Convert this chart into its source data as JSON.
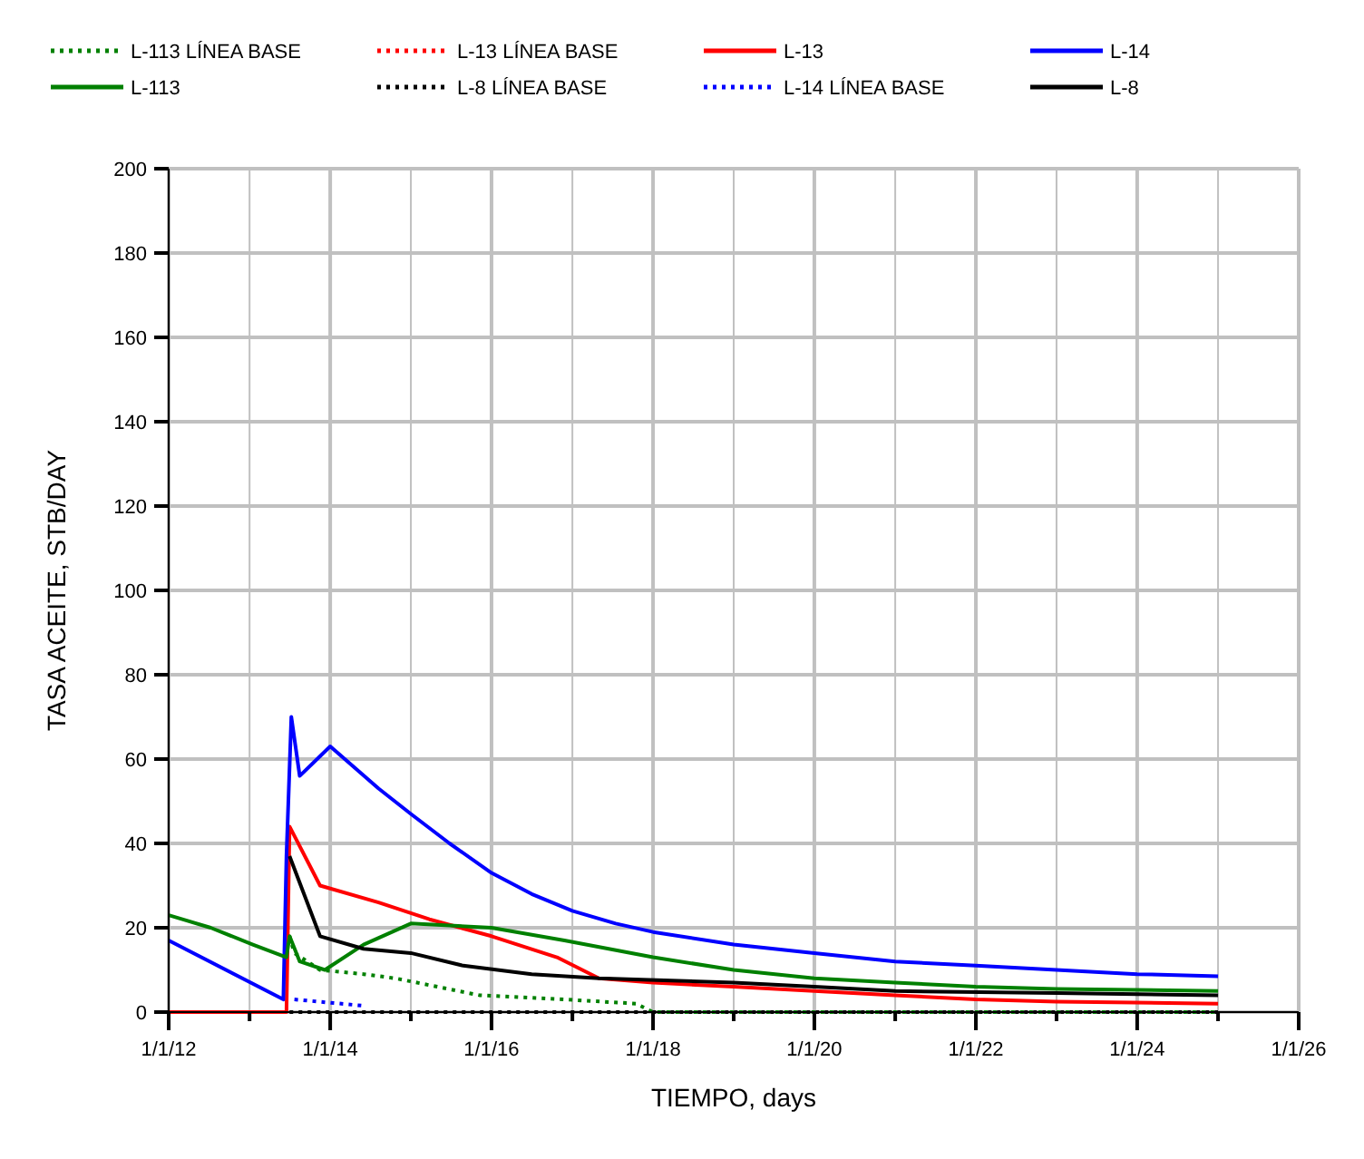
{
  "chart_data": {
    "type": "line",
    "xlabel": "TIEMPO, days",
    "ylabel": "TASA ACEITE, STB/DAY",
    "xlim": [
      "2012-01-01",
      "2026-01-01"
    ],
    "ylim": [
      0,
      200
    ],
    "xticks": [
      {
        "value": "2012-01-01",
        "label": "1/1/12"
      },
      {
        "value": "2013-01-01",
        "label": null
      },
      {
        "value": "2014-01-01",
        "label": "1/1/14"
      },
      {
        "value": "2015-01-01",
        "label": null
      },
      {
        "value": "2016-01-01",
        "label": "1/1/16"
      },
      {
        "value": "2017-01-01",
        "label": null
      },
      {
        "value": "2018-01-01",
        "label": "1/1/18"
      },
      {
        "value": "2019-01-01",
        "label": null
      },
      {
        "value": "2020-01-01",
        "label": "1/1/20"
      },
      {
        "value": "2021-01-01",
        "label": null
      },
      {
        "value": "2022-01-01",
        "label": "1/1/22"
      },
      {
        "value": "2023-01-01",
        "label": null
      },
      {
        "value": "2024-01-01",
        "label": "1/1/24"
      },
      {
        "value": "2025-01-01",
        "label": null
      },
      {
        "value": "2026-01-01",
        "label": "1/1/26"
      }
    ],
    "yticks": [
      0,
      20,
      40,
      60,
      80,
      100,
      120,
      140,
      160,
      180,
      200
    ],
    "grid": true,
    "legend": "top",
    "series": [
      {
        "name": "L-113 LÍNEA BASE",
        "color": "#008000",
        "line_style": "dotted",
        "x": [
          "2013-07-01",
          "2013-07-23",
          "2013-11-16",
          "2014-06-01",
          "2014-10-24",
          "2015-11-07",
          "2016-11-26",
          "2017-10-16",
          "2018-01-01",
          "2020-01-01",
          "2022-01-01",
          "2025-01-01"
        ],
        "values": [
          18,
          14,
          10,
          9,
          8,
          4,
          3,
          2,
          0,
          0,
          0,
          0
        ]
      },
      {
        "name": "L-13 LÍNEA BASE",
        "color": "#ff0000",
        "line_style": "dotted"
      },
      {
        "name": "L-13",
        "color": "#ff0000",
        "line_style": "solid",
        "x": [
          "2012-01-01",
          "2013-06-17",
          "2013-07-01",
          "2013-11-16",
          "2014-08-08",
          "2015-03-26",
          "2016-01-01",
          "2016-10-23",
          "2017-05-01",
          "2018-01-01",
          "2019-01-01",
          "2020-01-01",
          "2021-01-01",
          "2022-01-01",
          "2023-01-01",
          "2025-01-01"
        ],
        "values": [
          0,
          0,
          44,
          30,
          26,
          22,
          18,
          13,
          8,
          7,
          6,
          5,
          4,
          3,
          2.5,
          2
        ]
      },
      {
        "name": "L-14",
        "color": "#0000ff",
        "line_style": "solid",
        "x": [
          "2012-01-01",
          "2013-06-03",
          "2013-06-17",
          "2013-07-09",
          "2013-08-16",
          "2014-01-01",
          "2014-08-08",
          "2015-01-01",
          "2015-06-25",
          "2016-01-01",
          "2016-07-01",
          "2017-01-01",
          "2017-07-16",
          "2018-01-01",
          "2019-01-01",
          "2020-01-01",
          "2021-01-01",
          "2022-01-01",
          "2023-01-01",
          "2024-01-01",
          "2025-01-01"
        ],
        "values": [
          17,
          3,
          37,
          70,
          56,
          63,
          53,
          47,
          40,
          33,
          28,
          24,
          21,
          19,
          16,
          14,
          12,
          11,
          10,
          9,
          8.5
        ]
      },
      {
        "name": "L-113",
        "color": "#008000",
        "line_style": "solid",
        "x": [
          "2012-01-01",
          "2012-07-09",
          "2013-01-16",
          "2013-06-17",
          "2013-07-01",
          "2013-08-16",
          "2013-12-08",
          "2014-06-01",
          "2015-01-01",
          "2016-01-01",
          "2016-11-26",
          "2018-01-01",
          "2019-01-01",
          "2020-01-01",
          "2021-01-01",
          "2022-01-01",
          "2023-01-01",
          "2025-01-01"
        ],
        "values": [
          23,
          20,
          16,
          13,
          18,
          12,
          10,
          16,
          21,
          20,
          17,
          13,
          10,
          8,
          7,
          6,
          5.5,
          5
        ]
      },
      {
        "name": "L-8 LÍNEA BASE",
        "color": "#000000",
        "line_style": "dotted",
        "x": [
          "2013-07-01",
          "2025-01-01"
        ],
        "values": [
          0,
          0
        ]
      },
      {
        "name": "L-14 LÍNEA BASE",
        "color": "#0000ff",
        "line_style": "dotted",
        "x": [
          "2013-07-23",
          "2014-06-01"
        ],
        "values": [
          3,
          1.5
        ]
      },
      {
        "name": "L-8",
        "color": "#000000",
        "line_style": "solid",
        "x": [
          "2013-07-01",
          "2013-11-16",
          "2014-06-01",
          "2015-01-01",
          "2015-08-26",
          "2016-07-01",
          "2017-05-01",
          "2019-01-01",
          "2020-01-01",
          "2021-01-01",
          "2023-01-01",
          "2025-01-01"
        ],
        "values": [
          37,
          18,
          15,
          14,
          11,
          9,
          8,
          7,
          6,
          5,
          4.5,
          4
        ]
      }
    ]
  }
}
